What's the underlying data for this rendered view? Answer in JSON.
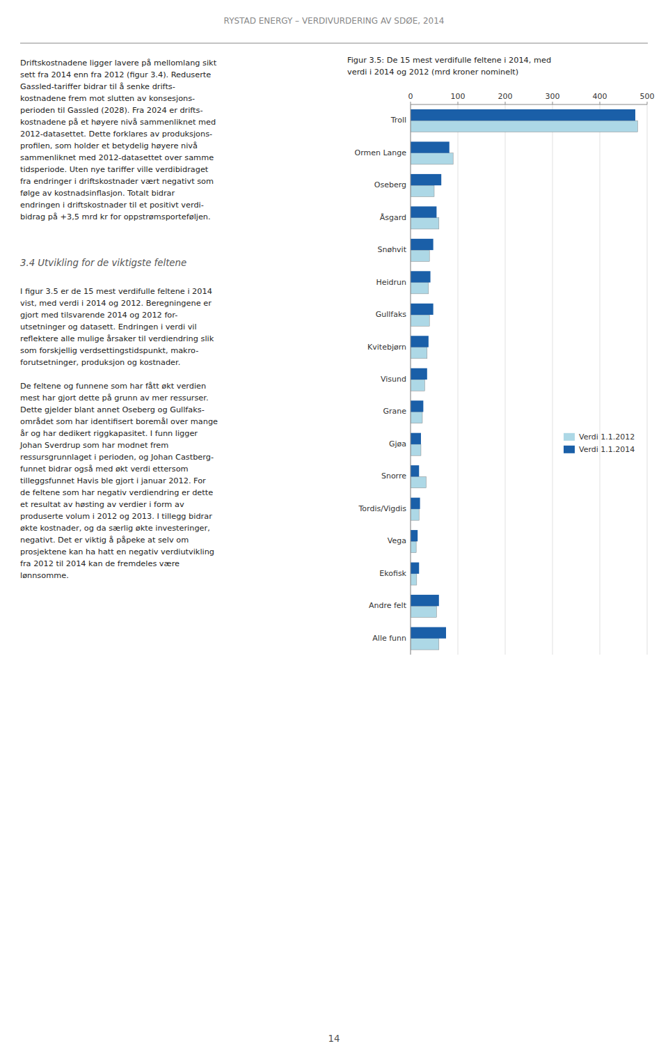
{
  "page_header": "RYSTAD ENERGY – VERDIVURDERING AV SDØE, 2014",
  "section_header": "3.4  Utvikling for de viktigste feltene",
  "page_number": "14",
  "body_text": [
    [
      "Driftskostnadene ligger lavere på mellomlang sikt",
      "sett fra 2014 enn fra 2012 (figur 3.4). Reduserte",
      "Gassled-tariffer bidrar til å senke drifts-",
      "kostnadene frem mot slutten av konsesjons-",
      "perioden til Gassled (2028). Fra 2024 er drifts-",
      "kostnadene på et høyere nivå sammenliknet med",
      "2012-datasettet. Dette forklares av produksjons-",
      "profilen, som holder et betydelig høyere nivå",
      "sammenliknet med 2012-datasettet over samme",
      "tidsperiode. Uten nye tariffer ville verdibidraget",
      "fra endringer i driftskostnader vært negativt som",
      "følge av kostnadsinflasjon. Totalt bidrar",
      "endringen i driftskostnader til et positivt verdi-",
      "bidrag på +3,5 mrd kr for oppstrømsporteføljen."
    ],
    [
      "I figur 3.5 er de 15 mest verdifulle feltene i 2014",
      "vist, med verdi i 2014 og 2012. Beregningene er",
      "gjort med tilsvarende 2014 og 2012 for-",
      "utsetninger og datasett. Endringen i verdi vil",
      "reflektere alle mulige årsaker til verdiendring slik",
      "som forskjellig verdsettingstidspunkt, makro-",
      "forutsetninger, produksjon og kostnader."
    ],
    [
      "De feltene og funnene som har fått økt verdien",
      "mest har gjort dette på grunn av mer ressurser.",
      "Dette gjelder blant annet Oseberg og Gullfaks-",
      "området som har identifisert boremål over mange",
      "år og har dedikert riggkapasitet. I funn ligger",
      "Johan Sverdrup som har modnet frem",
      "ressursgrunnlaget i perioden, og Johan Castberg-",
      "funnet bidrar også med økt verdi ettersom",
      "tilleggsfunnet Havis ble gjort i januar 2012. For",
      "de feltene som har negativ verdiendring er dette",
      "et resultat av høsting av verdier i form av",
      "produserte volum i 2012 og 2013. I tillegg bidrar",
      "økte kostnader, og da særlig økte investeringer,",
      "negativt. Det er viktig å påpeke at selv om",
      "prosjektene kan ha hatt en negativ verdiutvikling",
      "fra 2012 til 2014 kan de fremdeles være",
      "lønnsomme."
    ]
  ],
  "chart_data": {
    "type": "bar",
    "orientation": "horizontal",
    "title": [
      "Figur 3.5: De 15 mest verdifulle feltene i 2014, med",
      "verdi i 2014 og 2012 (mrd kroner nominelt)"
    ],
    "categories": [
      "Troll",
      "Ormen Lange",
      "Oseberg",
      "Åsgard",
      "Snøhvit",
      "Heidrun",
      "Gullfaks",
      "Kvitebjørn",
      "Visund",
      "Grane",
      "Gjøa",
      "Snorre",
      "Tordis/Vigdis",
      "Vega",
      "Ekofisk",
      "Andre felt",
      "Alle funn"
    ],
    "series": [
      {
        "name": "Verdi 1.1.2012",
        "color": "#add8e6",
        "values": [
          480,
          90,
          50,
          60,
          40,
          38,
          40,
          35,
          30,
          25,
          22,
          33,
          18,
          12,
          13,
          55,
          60
        ]
      },
      {
        "name": "Verdi 1.1.2014",
        "color": "#1a5fa8",
        "values": [
          475,
          82,
          65,
          55,
          48,
          42,
          48,
          38,
          35,
          27,
          22,
          18,
          20,
          15,
          18,
          60,
          75
        ]
      }
    ],
    "xlim": [
      0,
      500
    ],
    "xticks": [
      0,
      100,
      200,
      300,
      400,
      500
    ],
    "grid": true,
    "legend": "right"
  }
}
